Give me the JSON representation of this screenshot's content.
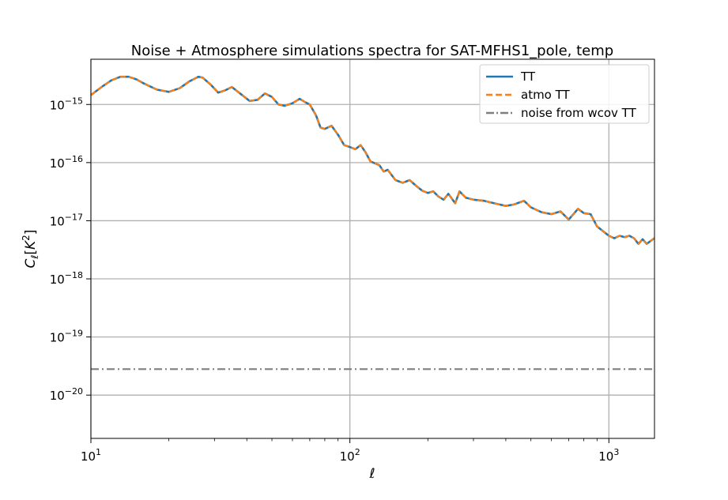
{
  "chart_data": {
    "type": "line",
    "title": "Noise + Atmosphere simulations spectra for SAT-MFHS1_pole, temp",
    "xlabel": "ℓ",
    "ylabel": "C_ℓ[K^2]",
    "x_scale": "log",
    "y_scale": "log",
    "xlim": [
      10,
      1500
    ],
    "ylim": [
      1.8e-21,
      6e-15
    ],
    "grid": true,
    "legend_position": "upper right",
    "x_ticks": [
      {
        "base": "10",
        "exp": "1",
        "value": 10
      },
      {
        "base": "10",
        "exp": "2",
        "value": 100
      },
      {
        "base": "10",
        "exp": "3",
        "value": 1000
      }
    ],
    "y_ticks": [
      {
        "base": "10",
        "exp": "−15",
        "value": 1e-15
      },
      {
        "base": "10",
        "exp": "−16",
        "value": 1e-16
      },
      {
        "base": "10",
        "exp": "−17",
        "value": 1e-17
      },
      {
        "base": "10",
        "exp": "−18",
        "value": 1e-18
      },
      {
        "base": "10",
        "exp": "−19",
        "value": 1e-19
      },
      {
        "base": "10",
        "exp": "−20",
        "value": 1e-20
      }
    ],
    "series": [
      {
        "name": "TT",
        "color": "#1f77b4",
        "style": "solid",
        "x": [
          10,
          11,
          12,
          13,
          14,
          15,
          16,
          18,
          20,
          22,
          24,
          26,
          27,
          29,
          31,
          33,
          35,
          38,
          41,
          44,
          47,
          50,
          53,
          56,
          60,
          64,
          67,
          70,
          74,
          77,
          80,
          85,
          90,
          95,
          100,
          105,
          110,
          115,
          120,
          130,
          135,
          140,
          150,
          160,
          170,
          180,
          190,
          200,
          210,
          220,
          230,
          240,
          255,
          265,
          280,
          300,
          330,
          360,
          400,
          430,
          470,
          500,
          550,
          600,
          650,
          700,
          760,
          800,
          850,
          900,
          1000,
          1050,
          1100,
          1150,
          1200,
          1250,
          1300,
          1350,
          1400,
          1450,
          1500
        ],
        "y": [
          1.45e-15,
          2e-15,
          2.6e-15,
          3e-15,
          3e-15,
          2.7e-15,
          2.3e-15,
          1.8e-15,
          1.65e-15,
          1.9e-15,
          2.5e-15,
          3e-15,
          2.9e-15,
          2.2e-15,
          1.6e-15,
          1.75e-15,
          2e-15,
          1.5e-15,
          1.15e-15,
          1.2e-15,
          1.55e-15,
          1.35e-15,
          1e-15,
          9.5e-16,
          1.05e-15,
          1.25e-15,
          1.1e-15,
          1e-15,
          6.5e-16,
          4e-16,
          3.8e-16,
          4.3e-16,
          3e-16,
          2e-16,
          1.85e-16,
          1.7e-16,
          2e-16,
          1.5e-16,
          1.05e-16,
          9e-17,
          7e-17,
          7.5e-17,
          5e-17,
          4.5e-17,
          5e-17,
          4e-17,
          3.3e-17,
          3e-17,
          3.2e-17,
          2.6e-17,
          2.3e-17,
          2.9e-17,
          2e-17,
          3.2e-17,
          2.5e-17,
          2.3e-17,
          2.2e-17,
          2e-17,
          1.8e-17,
          1.9e-17,
          2.2e-17,
          1.7e-17,
          1.4e-17,
          1.3e-17,
          1.45e-17,
          1.05e-17,
          1.6e-17,
          1.35e-17,
          1.3e-17,
          8e-18,
          5.5e-18,
          5e-18,
          5.5e-18,
          5.2e-18,
          5.5e-18,
          5e-18,
          4e-18,
          4.8e-18,
          4e-18,
          4.5e-18,
          5e-18
        ]
      },
      {
        "name": "atmo TT",
        "color": "#ff7f0e",
        "style": "dashed",
        "same_as": "TT"
      },
      {
        "name": "noise from wcov TT",
        "color": "#7f7f7f",
        "style": "dashdot",
        "x": [
          10,
          1500
        ],
        "y": [
          2.8e-20,
          2.8e-20
        ]
      }
    ]
  }
}
